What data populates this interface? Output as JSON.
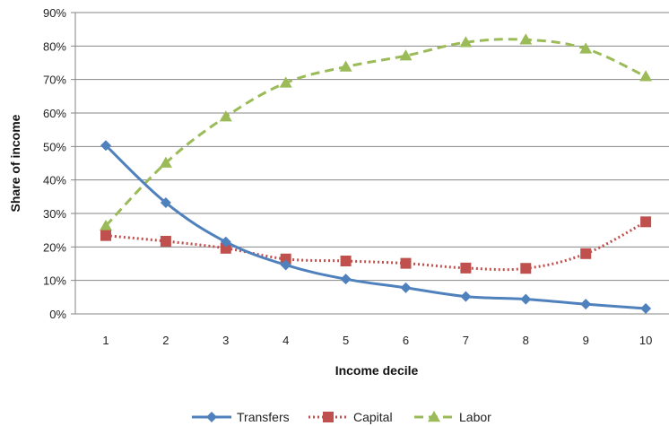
{
  "chart_data": {
    "type": "line",
    "title": "",
    "xlabel": "Income decile",
    "ylabel": "Share of income",
    "categories": [
      "1",
      "2",
      "3",
      "4",
      "5",
      "6",
      "7",
      "8",
      "9",
      "10"
    ],
    "ylim": [
      0,
      90
    ],
    "yticks": [
      0,
      10,
      20,
      30,
      40,
      50,
      60,
      70,
      80,
      90
    ],
    "ytick_labels": [
      "0%",
      "10%",
      "20%",
      "30%",
      "40%",
      "50%",
      "60%",
      "70%",
      "80%",
      "90%"
    ],
    "grid": "horizontal",
    "legend_position": "bottom",
    "series": [
      {
        "name": "Transfers",
        "values": [
          50.3,
          33.2,
          21.5,
          14.6,
          10.4,
          7.8,
          5.2,
          4.4,
          2.9,
          1.6
        ],
        "color": "#4F81BD",
        "marker": "diamond",
        "line_style": "solid"
      },
      {
        "name": "Capital",
        "values": [
          23.4,
          21.7,
          19.6,
          16.4,
          15.8,
          15.1,
          13.7,
          13.6,
          18.0,
          27.5
        ],
        "color": "#C0504D",
        "marker": "square",
        "line_style": "dotted"
      },
      {
        "name": "Labor",
        "values": [
          26.3,
          45.1,
          58.9,
          69.0,
          73.8,
          77.1,
          81.1,
          81.9,
          79.2,
          70.9
        ],
        "color": "#9BBB59",
        "marker": "triangle",
        "line_style": "dashed"
      }
    ]
  }
}
